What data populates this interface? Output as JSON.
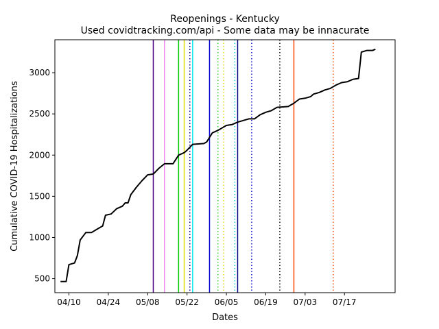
{
  "chart_data": {
    "type": "line",
    "title": "Reopenings - Kentucky",
    "subtitle": "Used covidtracking.com/api - Some data may be innacurate",
    "xlabel": "Dates",
    "ylabel": "Cumulative COVID-19 Hospitalizations",
    "x_start": "2020-04-07",
    "x_end": "2020-07-31",
    "xlim": [
      "2020-04-05",
      "2020-08-04"
    ],
    "ylim": [
      330,
      3400
    ],
    "yticks": [
      500,
      1000,
      1500,
      2000,
      2500,
      3000
    ],
    "xticks": [
      {
        "date": "2020-04-10",
        "label": "04/10"
      },
      {
        "date": "2020-04-24",
        "label": "04/24"
      },
      {
        "date": "2020-05-08",
        "label": "05/08"
      },
      {
        "date": "2020-05-22",
        "label": "05/22"
      },
      {
        "date": "2020-06-05",
        "label": "06/05"
      },
      {
        "date": "2020-06-19",
        "label": "06/19"
      },
      {
        "date": "2020-07-03",
        "label": "07/03"
      },
      {
        "date": "2020-07-17",
        "label": "07/17"
      }
    ],
    "grid": false,
    "series": [
      {
        "color": "#000000",
        "points": [
          [
            "2020-04-07",
            465
          ],
          [
            "2020-04-09",
            465
          ],
          [
            "2020-04-10",
            670
          ],
          [
            "2020-04-12",
            690
          ],
          [
            "2020-04-13",
            780
          ],
          [
            "2020-04-14",
            970
          ],
          [
            "2020-04-16",
            1060
          ],
          [
            "2020-04-18",
            1060
          ],
          [
            "2020-04-20",
            1100
          ],
          [
            "2020-04-22",
            1140
          ],
          [
            "2020-04-23",
            1270
          ],
          [
            "2020-04-25",
            1285
          ],
          [
            "2020-04-27",
            1350
          ],
          [
            "2020-04-29",
            1380
          ],
          [
            "2020-04-30",
            1420
          ],
          [
            "2020-05-01",
            1420
          ],
          [
            "2020-05-02",
            1520
          ],
          [
            "2020-05-04",
            1610
          ],
          [
            "2020-05-06",
            1690
          ],
          [
            "2020-05-08",
            1760
          ],
          [
            "2020-05-10",
            1770
          ],
          [
            "2020-05-12",
            1840
          ],
          [
            "2020-05-14",
            1895
          ],
          [
            "2020-05-17",
            1895
          ],
          [
            "2020-05-19",
            2000
          ],
          [
            "2020-05-21",
            2030
          ],
          [
            "2020-05-22",
            2060
          ],
          [
            "2020-05-24",
            2130
          ],
          [
            "2020-05-28",
            2140
          ],
          [
            "2020-05-29",
            2160
          ],
          [
            "2020-05-31",
            2270
          ],
          [
            "2020-06-02",
            2300
          ],
          [
            "2020-06-05",
            2360
          ],
          [
            "2020-06-07",
            2370
          ],
          [
            "2020-06-09",
            2400
          ],
          [
            "2020-06-11",
            2420
          ],
          [
            "2020-06-13",
            2440
          ],
          [
            "2020-06-15",
            2440
          ],
          [
            "2020-06-17",
            2490
          ],
          [
            "2020-06-19",
            2520
          ],
          [
            "2020-06-21",
            2540
          ],
          [
            "2020-06-23",
            2580
          ],
          [
            "2020-06-27",
            2590
          ],
          [
            "2020-06-29",
            2630
          ],
          [
            "2020-07-01",
            2680
          ],
          [
            "2020-07-03",
            2690
          ],
          [
            "2020-07-05",
            2710
          ],
          [
            "2020-07-06",
            2740
          ],
          [
            "2020-07-08",
            2760
          ],
          [
            "2020-07-10",
            2790
          ],
          [
            "2020-07-12",
            2810
          ],
          [
            "2020-07-14",
            2850
          ],
          [
            "2020-07-16",
            2880
          ],
          [
            "2020-07-18",
            2890
          ],
          [
            "2020-07-20",
            2920
          ],
          [
            "2020-07-22",
            2930
          ],
          [
            "2020-07-23",
            3250
          ],
          [
            "2020-07-25",
            3270
          ],
          [
            "2020-07-27",
            3270
          ],
          [
            "2020-07-28",
            3285
          ]
        ]
      }
    ],
    "vlines": [
      {
        "date": "2020-05-10",
        "color": "#4b0082",
        "style": "solid"
      },
      {
        "date": "2020-05-14",
        "color": "#ee82ee",
        "style": "solid"
      },
      {
        "date": "2020-05-19",
        "color": "#00cc00",
        "style": "solid"
      },
      {
        "date": "2020-05-21",
        "color": "#dddd00",
        "style": "solid"
      },
      {
        "date": "2020-05-23",
        "color": "#000080",
        "style": "dotted"
      },
      {
        "date": "2020-05-24",
        "color": "#00e5ee",
        "style": "solid"
      },
      {
        "date": "2020-05-30",
        "color": "#0000cc",
        "style": "solid"
      },
      {
        "date": "2020-06-02",
        "color": "#33cc33",
        "style": "dotted"
      },
      {
        "date": "2020-06-04",
        "color": "#dddd00",
        "style": "dotted"
      },
      {
        "date": "2020-06-08",
        "color": "#00cccc",
        "style": "dotted"
      },
      {
        "date": "2020-06-09",
        "color": "#000080",
        "style": "solid"
      },
      {
        "date": "2020-06-14",
        "color": "#0000cc",
        "style": "dotted"
      },
      {
        "date": "2020-06-24",
        "color": "#000000",
        "style": "dotted"
      },
      {
        "date": "2020-06-29",
        "color": "#ff4500",
        "style": "solid"
      },
      {
        "date": "2020-07-13",
        "color": "#ff4500",
        "style": "dotted"
      }
    ]
  }
}
